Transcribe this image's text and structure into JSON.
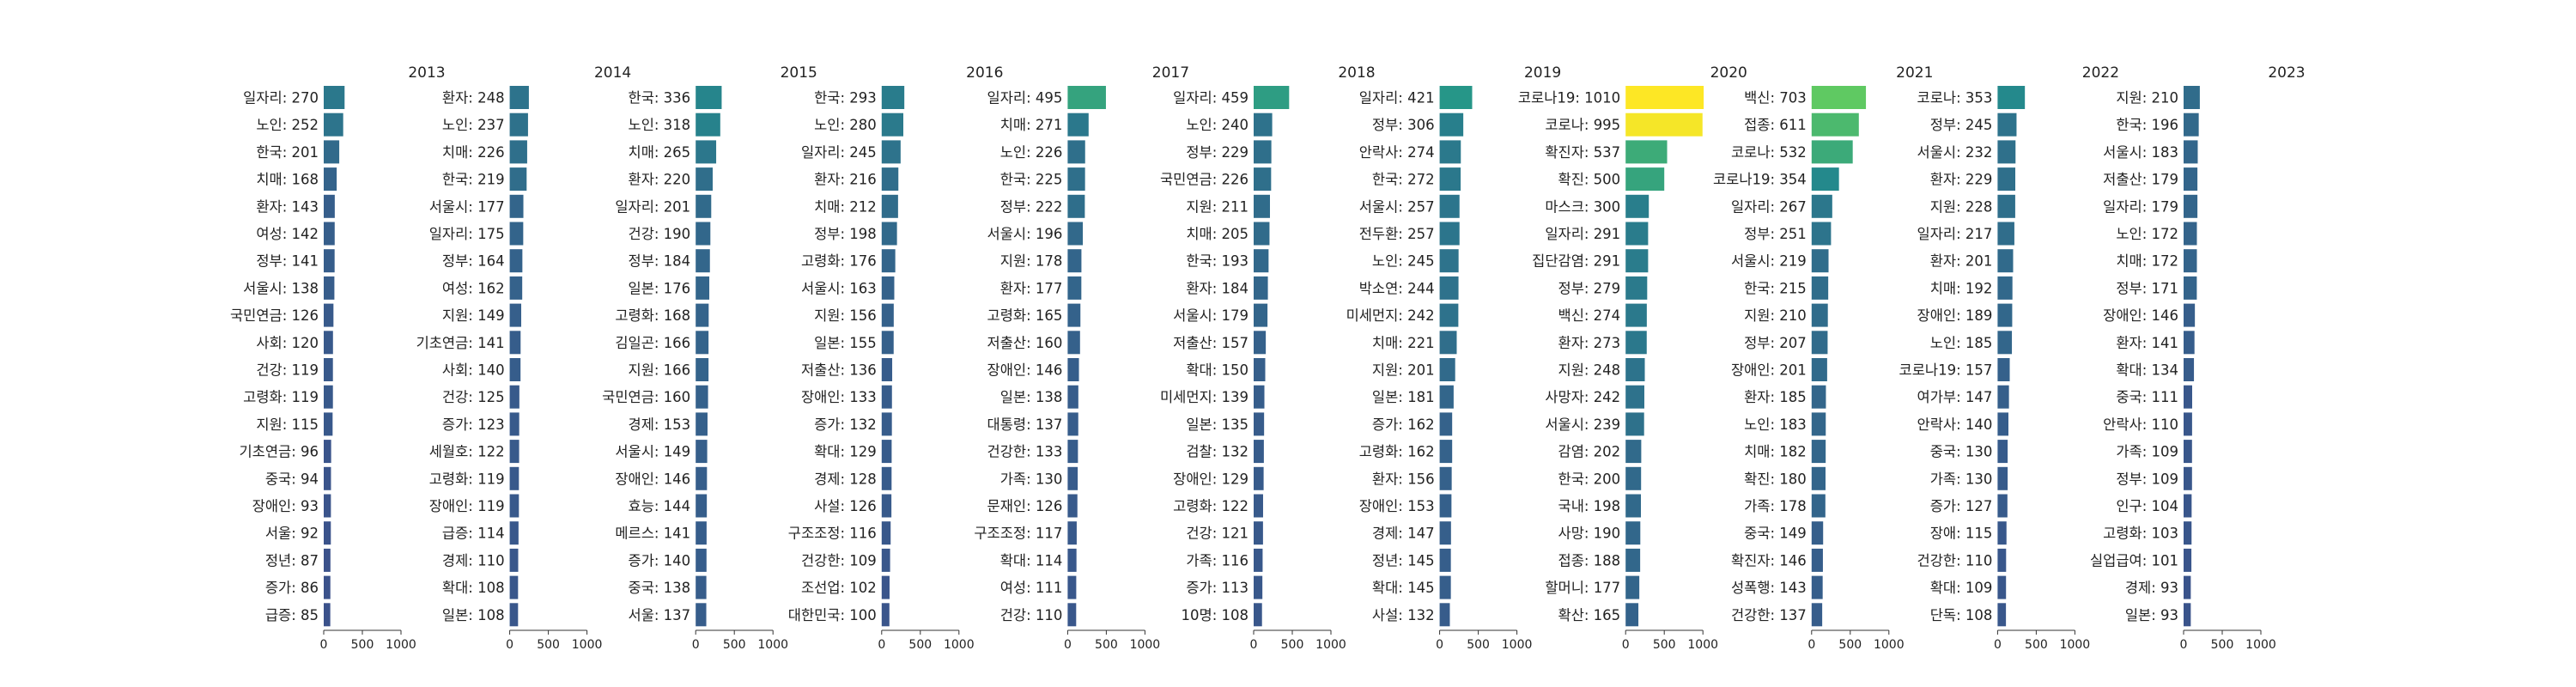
{
  "chart_data": {
    "type": "bar",
    "orientation": "horizontal",
    "xlim": [
      0,
      1000
    ],
    "xticks": [
      0,
      500,
      1000
    ],
    "colormap": "viridis",
    "color_range": [
      85,
      1010
    ],
    "grid": false,
    "legend": "none",
    "panels": [
      {
        "year": "2013",
        "labels": [
          "일자리: 270",
          "노인: 252",
          "한국: 201",
          "치매: 168",
          "환자: 143",
          "여성: 142",
          "정부: 141",
          "서울시: 138",
          "국민연금: 126",
          "사회: 120",
          "건강: 119",
          "고령화: 119",
          "지원: 115",
          "기초연금: 96",
          "중국: 94",
          "장애인: 93",
          "서울: 92",
          "정년: 87",
          "증가: 86",
          "급증: 85"
        ],
        "values": [
          270,
          252,
          201,
          168,
          143,
          142,
          141,
          138,
          126,
          120,
          119,
          119,
          115,
          96,
          94,
          93,
          92,
          87,
          86,
          85
        ]
      },
      {
        "year": "2014",
        "labels": [
          "환자: 248",
          "노인: 237",
          "치매: 226",
          "한국: 219",
          "서울시: 177",
          "일자리: 175",
          "정부: 164",
          "여성: 162",
          "지원: 149",
          "기초연금: 141",
          "사회: 140",
          "건강: 125",
          "증가: 123",
          "세월호: 122",
          "고령화: 119",
          "장애인: 119",
          "급증: 114",
          "경제: 110",
          "확대: 108",
          "일본: 108"
        ],
        "values": [
          248,
          237,
          226,
          219,
          177,
          175,
          164,
          162,
          149,
          141,
          140,
          125,
          123,
          122,
          119,
          119,
          114,
          110,
          108,
          108
        ]
      },
      {
        "year": "2015",
        "labels": [
          "한국: 336",
          "노인: 318",
          "치매: 265",
          "환자: 220",
          "일자리: 201",
          "건강: 190",
          "정부: 184",
          "일본: 176",
          "고령화: 168",
          "김일곤: 166",
          "지원: 166",
          "국민연금: 160",
          "경제: 153",
          "서울시: 149",
          "장애인: 146",
          "효능: 144",
          "메르스: 141",
          "증가: 140",
          "중국: 138",
          "서울: 137"
        ],
        "values": [
          336,
          318,
          265,
          220,
          201,
          190,
          184,
          176,
          168,
          166,
          166,
          160,
          153,
          149,
          146,
          144,
          141,
          140,
          138,
          137
        ]
      },
      {
        "year": "2016",
        "labels": [
          "한국: 293",
          "노인: 280",
          "일자리: 245",
          "환자: 216",
          "치매: 212",
          "정부: 198",
          "고령화: 176",
          "서울시: 163",
          "지원: 156",
          "일본: 155",
          "저출산: 136",
          "장애인: 133",
          "증가: 132",
          "확대: 129",
          "경제: 128",
          "사설: 126",
          "구조조정: 116",
          "건강한: 109",
          "조선업: 102",
          "대한민국: 100"
        ],
        "values": [
          293,
          280,
          245,
          216,
          212,
          198,
          176,
          163,
          156,
          155,
          136,
          133,
          132,
          129,
          128,
          126,
          116,
          109,
          102,
          100
        ]
      },
      {
        "year": "2017",
        "labels": [
          "일자리: 495",
          "치매: 271",
          "노인: 226",
          "한국: 225",
          "정부: 222",
          "서울시: 196",
          "지원: 178",
          "환자: 177",
          "고령화: 165",
          "저출산: 160",
          "장애인: 146",
          "일본: 138",
          "대통령: 137",
          "건강한: 133",
          "가족: 130",
          "문재인: 126",
          "구조조정: 117",
          "확대: 114",
          "여성: 111",
          "건강: 110"
        ],
        "values": [
          495,
          271,
          226,
          225,
          222,
          196,
          178,
          177,
          165,
          160,
          146,
          138,
          137,
          133,
          130,
          126,
          117,
          114,
          111,
          110
        ]
      },
      {
        "year": "2018",
        "labels": [
          "일자리: 459",
          "노인: 240",
          "정부: 229",
          "국민연금: 226",
          "지원: 211",
          "치매: 205",
          "한국: 193",
          "환자: 184",
          "서울시: 179",
          "저출산: 157",
          "확대: 150",
          "미세먼지: 139",
          "일본: 135",
          "검찰: 132",
          "장애인: 129",
          "고령화: 122",
          "건강: 121",
          "가족: 116",
          "증가: 113",
          "10명: 108"
        ],
        "values": [
          459,
          240,
          229,
          226,
          211,
          205,
          193,
          184,
          179,
          157,
          150,
          139,
          135,
          132,
          129,
          122,
          121,
          116,
          113,
          108
        ]
      },
      {
        "year": "2019",
        "labels": [
          "일자리: 421",
          "정부: 306",
          "안락사: 274",
          "한국: 272",
          "서울시: 257",
          "전두환: 257",
          "노인: 245",
          "박소연: 244",
          "미세먼지: 242",
          "치매: 221",
          "지원: 201",
          "일본: 181",
          "증가: 162",
          "고령화: 162",
          "환자: 156",
          "장애인: 153",
          "경제: 147",
          "정년: 145",
          "확대: 145",
          "사설: 132"
        ],
        "values": [
          421,
          306,
          274,
          272,
          257,
          257,
          245,
          244,
          242,
          221,
          201,
          181,
          162,
          162,
          156,
          153,
          147,
          145,
          145,
          132
        ]
      },
      {
        "year": "2020",
        "labels": [
          "코로나19: 1010",
          "코로나: 995",
          "확진자: 537",
          "확진: 500",
          "마스크: 300",
          "일자리: 291",
          "집단감염: 291",
          "정부: 279",
          "백신: 274",
          "환자: 273",
          "지원: 248",
          "사망자: 242",
          "서울시: 239",
          "감염: 202",
          "한국: 200",
          "국내: 198",
          "사망: 190",
          "접종: 188",
          "할머니: 177",
          "확산: 165"
        ],
        "values": [
          1010,
          995,
          537,
          500,
          300,
          291,
          291,
          279,
          274,
          273,
          248,
          242,
          239,
          202,
          200,
          198,
          190,
          188,
          177,
          165
        ]
      },
      {
        "year": "2021",
        "labels": [
          "백신: 703",
          "접종: 611",
          "코로나: 532",
          "코로나19: 354",
          "일자리: 267",
          "정부: 251",
          "서울시: 219",
          "한국: 215",
          "지원: 210",
          "정부: 207",
          "장애인: 201",
          "환자: 185",
          "노인: 183",
          "치매: 182",
          "확진: 180",
          "가족: 178",
          "중국: 149",
          "확진자: 146",
          "성폭행: 143",
          "건강한: 137"
        ],
        "values": [
          703,
          611,
          532,
          354,
          267,
          251,
          219,
          215,
          210,
          207,
          201,
          185,
          183,
          182,
          180,
          178,
          149,
          146,
          143,
          137
        ]
      },
      {
        "year": "2022",
        "labels": [
          "코로나: 353",
          "정부: 245",
          "서울시: 232",
          "환자: 229",
          "지원: 228",
          "일자리: 217",
          "환자: 201",
          "치매: 192",
          "장애인: 189",
          "노인: 185",
          "코로나19: 157",
          "여가부: 147",
          "안락사: 140",
          "중국: 130",
          "가족: 130",
          "증가: 127",
          "장애: 115",
          "건강한: 110",
          "확대: 109",
          "단독: 108"
        ],
        "values": [
          353,
          245,
          232,
          229,
          228,
          217,
          201,
          192,
          189,
          185,
          157,
          147,
          140,
          130,
          130,
          127,
          115,
          110,
          109,
          108
        ]
      },
      {
        "year": "2023",
        "labels": [
          "지원: 210",
          "한국: 196",
          "서울시: 183",
          "저출산: 179",
          "일자리: 179",
          "노인: 172",
          "치매: 172",
          "정부: 171",
          "장애인: 146",
          "환자: 141",
          "확대: 134",
          "중국: 111",
          "안락사: 110",
          "가족: 109",
          "정부: 109",
          "인구: 104",
          "고령화: 103",
          "실업급여: 101",
          "경제: 93",
          "일본: 93"
        ],
        "values": [
          210,
          196,
          183,
          179,
          179,
          172,
          172,
          171,
          146,
          141,
          134,
          111,
          110,
          109,
          109,
          104,
          103,
          101,
          93,
          93
        ]
      }
    ]
  }
}
